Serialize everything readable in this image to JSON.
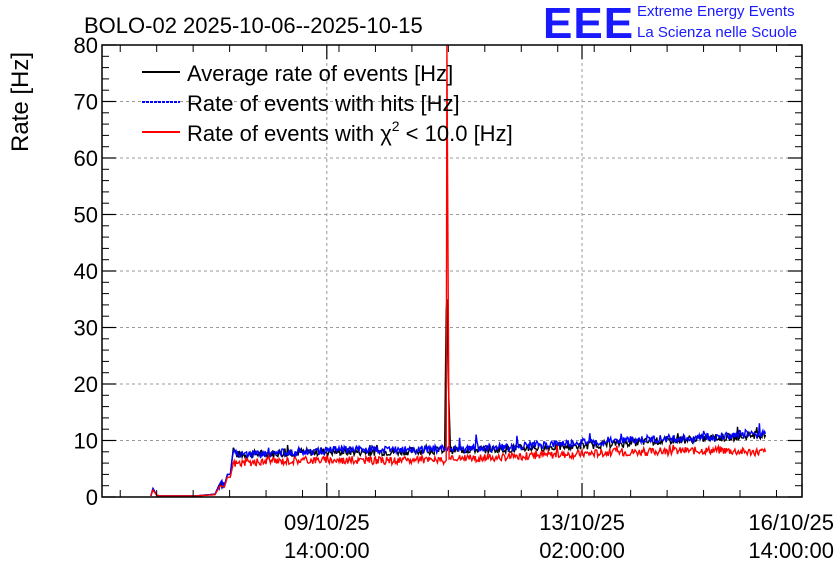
{
  "header": {
    "title": "BOLO-02 2025-10-06--2025-10-15",
    "logo_text": "EEE",
    "logo_line1": "Extreme Energy Events",
    "logo_line2": "La Scienza nelle Scuole",
    "brand_color": "#1a1aff"
  },
  "chart_data": {
    "type": "line",
    "title": "BOLO-02 2025-10-06--2025-10-15",
    "xlabel": "",
    "ylabel": "Rate [Hz]",
    "ylim": [
      0,
      80
    ],
    "xlim": [
      0,
      9.6
    ],
    "x_unit": "days since 2025-10-06 12:00",
    "y_ticks": [
      "0",
      "10",
      "20",
      "30",
      "40",
      "50",
      "60",
      "70",
      "80"
    ],
    "x_ticks": [
      {
        "x": 3.083,
        "date": "09/10/25",
        "time": "14:00:00"
      },
      {
        "x": 6.583,
        "date": "13/10/25",
        "time": "02:00:00"
      },
      {
        "x": 10.083,
        "date": "16/10/25",
        "time": "14:00:00"
      }
    ],
    "grid": true,
    "legend_position": "top-left",
    "legend": [
      {
        "name": "Average rate of events [Hz]",
        "color": "#000000",
        "dashed": false
      },
      {
        "name": "Rate of events with hits [Hz]",
        "color": "#0000ff",
        "dashed": true
      },
      {
        "name": "Rate of events with χ",
        "sup": "2",
        "rest": " < 10.0 [Hz]",
        "color": "#ff0000",
        "dashed": false
      }
    ],
    "series": [
      {
        "name": "Average rate of events [Hz]",
        "color": "#000000",
        "x": [
          0.67,
          0.7,
          0.75,
          0.8,
          1.0,
          1.3,
          1.55,
          1.62,
          1.68,
          1.72,
          1.76,
          1.8,
          1.85,
          3.0,
          4.0,
          4.7,
          4.72,
          4.73,
          4.75,
          4.78,
          5.5,
          6.5,
          7.5,
          8.5,
          9.1
        ],
        "y": [
          0.2,
          1.5,
          0.3,
          0.2,
          0.2,
          0.2,
          0.5,
          2.5,
          2.0,
          4.0,
          4.0,
          8.5,
          7.5,
          8.0,
          8.0,
          8.3,
          33.0,
          35.0,
          20.0,
          8.3,
          8.5,
          9.0,
          9.8,
          10.5,
          11.0
        ]
      },
      {
        "name": "Rate of events with hits [Hz]",
        "color": "#0000ff",
        "x": [
          0.67,
          0.7,
          0.75,
          0.8,
          1.0,
          1.3,
          1.55,
          1.62,
          1.68,
          1.72,
          1.76,
          1.8,
          1.85,
          2.2,
          2.6,
          3.0,
          3.5,
          4.0,
          4.4,
          4.7,
          5.0,
          5.5,
          6.0,
          6.5,
          7.0,
          7.5,
          8.0,
          8.5,
          8.8,
          9.1
        ],
        "y": [
          0.2,
          1.5,
          0.3,
          0.2,
          0.2,
          0.2,
          0.5,
          2.5,
          2.0,
          4.0,
          4.0,
          8.5,
          7.5,
          7.5,
          8.0,
          8.2,
          8.5,
          8.3,
          8.4,
          8.5,
          8.6,
          8.8,
          9.2,
          9.6,
          10.0,
          10.2,
          10.4,
          10.8,
          11.2,
          11.2
        ]
      },
      {
        "name": "Rate of events with χ2 < 10.0 [Hz]",
        "color": "#ff0000",
        "x": [
          0.67,
          0.7,
          0.75,
          0.8,
          1.0,
          1.3,
          1.55,
          1.62,
          1.68,
          1.72,
          1.76,
          1.8,
          1.85,
          2.2,
          2.6,
          3.0,
          3.5,
          4.0,
          4.4,
          4.72,
          4.73,
          4.76,
          5.0,
          5.5,
          6.0,
          6.5,
          7.0,
          7.5,
          8.0,
          8.5,
          8.8,
          9.1
        ],
        "y": [
          0.2,
          1.2,
          0.3,
          0.2,
          0.2,
          0.2,
          0.4,
          2.0,
          1.8,
          3.5,
          3.5,
          6.0,
          6.0,
          6.2,
          6.5,
          6.6,
          6.5,
          6.4,
          6.6,
          6.5,
          80.0,
          6.6,
          6.8,
          7.0,
          7.4,
          7.6,
          7.9,
          8.0,
          8.2,
          8.3,
          8.0,
          8.0
        ]
      }
    ]
  }
}
